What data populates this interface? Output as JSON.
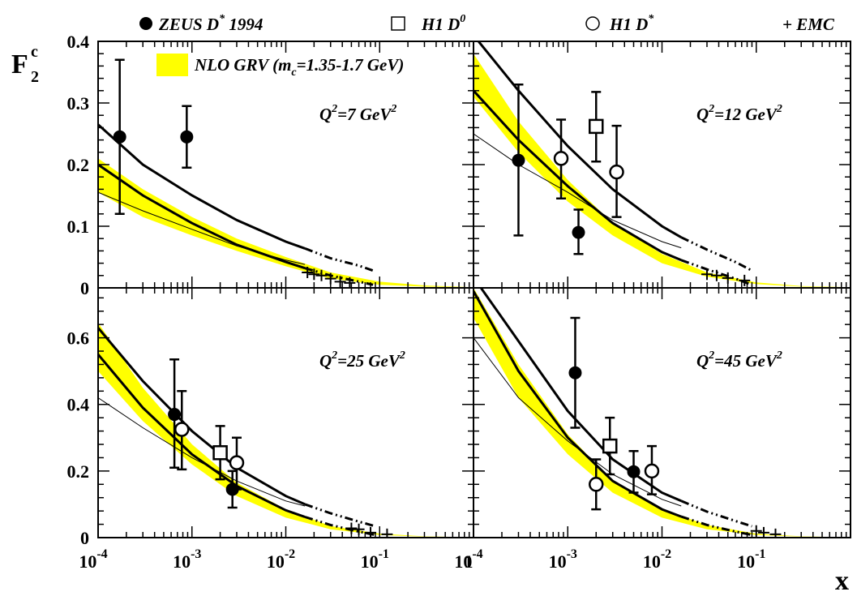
{
  "legend_top": {
    "zeus": "ZEUS D",
    "zeus_sup": "*",
    "zeus_year": " 1994",
    "h1d0": "H1 D",
    "h1d0_sup": "0",
    "h1ds": "H1 D",
    "h1ds_sup": "*",
    "emc": "+ EMC"
  },
  "band_legend": {
    "text_pre": "NLO GRV (m",
    "text_sub": "c",
    "text_post": "=1.35-1.7 GeV)"
  },
  "y_title": {
    "main": "F",
    "sup": "c",
    "sub": "2"
  },
  "x_title": "x",
  "x_ticks": [
    {
      "base": "10",
      "exp": "-4"
    },
    {
      "base": "10",
      "exp": "-3"
    },
    {
      "base": "10",
      "exp": "-2"
    },
    {
      "base": "10",
      "exp": "-1"
    },
    {
      "base": "1",
      "exp": ""
    }
  ],
  "x_ticks_right": [
    {
      "base": "10",
      "exp": "-4"
    },
    {
      "base": "10",
      "exp": "-3"
    },
    {
      "base": "10",
      "exp": "-2"
    },
    {
      "base": "10",
      "exp": "-1"
    },
    {
      "base": "",
      "exp": ""
    }
  ],
  "y_ticks_top": [
    "0",
    "0.1",
    "0.2",
    "0.3",
    "0.4"
  ],
  "y_ticks_bottom": [
    "0",
    "0.2",
    "0.4",
    "0.6"
  ],
  "colors": {
    "band": "#ffff00",
    "ink": "#000000"
  },
  "chart_data": [
    {
      "type": "scatter",
      "panel": "top-left",
      "label_pre": "Q",
      "label_sup": "2",
      "label_mid": "=7 GeV",
      "label_sup2": "2",
      "xlim": [
        0.0001,
        1
      ],
      "ylim": [
        0,
        0.4
      ],
      "xscale": "log",
      "series": [
        {
          "name": "ZEUS D* 1994",
          "points": [
            {
              "x": 0.00017,
              "y": 0.245,
              "lo": 0.12,
              "hi": 0.37
            },
            {
              "x": 0.00088,
              "y": 0.245,
              "lo": 0.195,
              "hi": 0.295
            }
          ]
        },
        {
          "name": "H1 D0",
          "points": []
        },
        {
          "name": "H1 D*",
          "points": []
        },
        {
          "name": "EMC",
          "points": [
            {
              "x": 0.017,
              "y": 0.025
            },
            {
              "x": 0.02,
              "y": 0.022
            },
            {
              "x": 0.024,
              "y": 0.02
            },
            {
              "x": 0.03,
              "y": 0.015
            },
            {
              "x": 0.038,
              "y": 0.01
            },
            {
              "x": 0.048,
              "y": 0.008
            }
          ]
        }
      ],
      "curves": {
        "band_lo": [
          [
            0.0001,
            0.155
          ],
          [
            0.0003,
            0.115
          ],
          [
            0.001,
            0.085
          ],
          [
            0.003,
            0.06
          ],
          [
            0.01,
            0.035
          ],
          [
            0.03,
            0.015
          ],
          [
            0.1,
            0.005
          ],
          [
            0.3,
            0.002
          ],
          [
            1,
            0.001
          ]
        ],
        "band_hi": [
          [
            0.0001,
            0.21
          ],
          [
            0.0003,
            0.16
          ],
          [
            0.001,
            0.115
          ],
          [
            0.003,
            0.08
          ],
          [
            0.01,
            0.05
          ],
          [
            0.03,
            0.025
          ],
          [
            0.1,
            0.01
          ],
          [
            0.3,
            0.004
          ],
          [
            1,
            0.001
          ]
        ],
        "thick_upper": [
          [
            0.0001,
            0.265
          ],
          [
            0.0003,
            0.2
          ],
          [
            0.001,
            0.15
          ],
          [
            0.003,
            0.11
          ],
          [
            0.01,
            0.075
          ],
          [
            0.016,
            0.064
          ]
        ],
        "thick_upper_dash": [
          [
            0.016,
            0.064
          ],
          [
            0.03,
            0.048
          ],
          [
            0.06,
            0.036
          ],
          [
            0.085,
            0.028
          ]
        ],
        "thick_middle": [
          [
            0.0001,
            0.2
          ],
          [
            0.0003,
            0.15
          ],
          [
            0.001,
            0.105
          ],
          [
            0.003,
            0.07
          ],
          [
            0.01,
            0.042
          ],
          [
            0.016,
            0.032
          ]
        ],
        "thick_middle_dash": [
          [
            0.016,
            0.032
          ],
          [
            0.03,
            0.02
          ],
          [
            0.06,
            0.01
          ],
          [
            0.085,
            0.005
          ]
        ],
        "thin": [
          [
            0.0001,
            0.155
          ],
          [
            0.0003,
            0.125
          ],
          [
            0.001,
            0.095
          ],
          [
            0.003,
            0.068
          ],
          [
            0.01,
            0.045
          ],
          [
            0.016,
            0.038
          ]
        ]
      }
    },
    {
      "type": "scatter",
      "panel": "top-right",
      "label_pre": "Q",
      "label_sup": "2",
      "label_mid": "=12 GeV",
      "label_sup2": "2",
      "xlim": [
        0.0001,
        1
      ],
      "ylim": [
        0,
        0.4
      ],
      "xscale": "log",
      "series": [
        {
          "name": "ZEUS D* 1994",
          "points": [
            {
              "x": 0.0003,
              "y": 0.207,
              "lo": 0.085,
              "hi": 0.33
            },
            {
              "x": 0.0013,
              "y": 0.09,
              "lo": 0.055,
              "hi": 0.127
            }
          ]
        },
        {
          "name": "H1 D0",
          "points": [
            {
              "x": 0.002,
              "y": 0.262,
              "lo": 0.205,
              "hi": 0.318
            }
          ]
        },
        {
          "name": "H1 D*",
          "points": [
            {
              "x": 0.00085,
              "y": 0.21,
              "lo": 0.145,
              "hi": 0.273
            },
            {
              "x": 0.0033,
              "y": 0.188,
              "lo": 0.115,
              "hi": 0.263
            }
          ]
        },
        {
          "name": "EMC",
          "points": [
            {
              "x": 0.03,
              "y": 0.022
            },
            {
              "x": 0.038,
              "y": 0.02
            },
            {
              "x": 0.05,
              "y": 0.016
            },
            {
              "x": 0.075,
              "y": 0.012
            }
          ]
        }
      ],
      "curves": {
        "band_lo": [
          [
            0.0001,
            0.31
          ],
          [
            0.0003,
            0.22
          ],
          [
            0.001,
            0.14
          ],
          [
            0.003,
            0.085
          ],
          [
            0.01,
            0.04
          ],
          [
            0.03,
            0.018
          ],
          [
            0.1,
            0.006
          ],
          [
            0.3,
            0.002
          ],
          [
            1,
            0.001
          ]
        ],
        "band_hi": [
          [
            0.0001,
            0.38
          ],
          [
            0.0003,
            0.27
          ],
          [
            0.001,
            0.175
          ],
          [
            0.003,
            0.105
          ],
          [
            0.01,
            0.055
          ],
          [
            0.03,
            0.025
          ],
          [
            0.1,
            0.009
          ],
          [
            0.3,
            0.003
          ],
          [
            1,
            0.001
          ]
        ],
        "thick_upper": [
          [
            0.0001,
            0.41
          ],
          [
            0.0003,
            0.32
          ],
          [
            0.001,
            0.23
          ],
          [
            0.003,
            0.16
          ],
          [
            0.01,
            0.1
          ],
          [
            0.016,
            0.082
          ]
        ],
        "thick_upper_dash": [
          [
            0.016,
            0.082
          ],
          [
            0.03,
            0.062
          ],
          [
            0.06,
            0.042
          ],
          [
            0.09,
            0.028
          ]
        ],
        "thick_middle": [
          [
            0.0001,
            0.32
          ],
          [
            0.0003,
            0.24
          ],
          [
            0.001,
            0.165
          ],
          [
            0.003,
            0.105
          ],
          [
            0.01,
            0.058
          ],
          [
            0.016,
            0.045
          ]
        ],
        "thick_middle_dash": [
          [
            0.016,
            0.045
          ],
          [
            0.03,
            0.03
          ],
          [
            0.06,
            0.015
          ],
          [
            0.09,
            0.005
          ]
        ],
        "thin": [
          [
            0.0001,
            0.25
          ],
          [
            0.0003,
            0.2
          ],
          [
            0.001,
            0.155
          ],
          [
            0.003,
            0.11
          ],
          [
            0.01,
            0.075
          ],
          [
            0.016,
            0.065
          ]
        ]
      }
    },
    {
      "type": "scatter",
      "panel": "bottom-left",
      "label_pre": "Q",
      "label_sup": "2",
      "label_mid": "=25 GeV",
      "label_sup2": "2",
      "xlim": [
        0.0001,
        1
      ],
      "ylim": [
        0,
        0.75
      ],
      "xscale": "log",
      "series": [
        {
          "name": "ZEUS D* 1994",
          "points": [
            {
              "x": 0.00065,
              "y": 0.37,
              "lo": 0.21,
              "hi": 0.535
            },
            {
              "x": 0.0027,
              "y": 0.145,
              "lo": 0.09,
              "hi": 0.2
            }
          ]
        },
        {
          "name": "H1 D0",
          "points": [
            {
              "x": 0.002,
              "y": 0.255,
              "lo": 0.175,
              "hi": 0.335
            }
          ]
        },
        {
          "name": "H1 D*",
          "points": [
            {
              "x": 0.00078,
              "y": 0.325,
              "lo": 0.205,
              "hi": 0.44
            },
            {
              "x": 0.003,
              "y": 0.225,
              "lo": 0.145,
              "hi": 0.3
            }
          ]
        },
        {
          "name": "EMC",
          "points": [
            {
              "x": 0.05,
              "y": 0.028
            },
            {
              "x": 0.06,
              "y": 0.025
            },
            {
              "x": 0.08,
              "y": 0.015
            },
            {
              "x": 0.12,
              "y": 0.01
            }
          ]
        }
      ],
      "curves": {
        "band_lo": [
          [
            0.0001,
            0.5
          ],
          [
            0.0003,
            0.35
          ],
          [
            0.001,
            0.22
          ],
          [
            0.003,
            0.125
          ],
          [
            0.01,
            0.06
          ],
          [
            0.03,
            0.025
          ],
          [
            0.1,
            0.008
          ],
          [
            0.3,
            0.003
          ],
          [
            1,
            0.001
          ]
        ],
        "band_hi": [
          [
            0.0001,
            0.645
          ],
          [
            0.0003,
            0.45
          ],
          [
            0.001,
            0.28
          ],
          [
            0.003,
            0.165
          ],
          [
            0.01,
            0.085
          ],
          [
            0.03,
            0.035
          ],
          [
            0.1,
            0.012
          ],
          [
            0.3,
            0.004
          ],
          [
            1,
            0.001
          ]
        ],
        "thick_upper": [
          [
            0.0001,
            0.63
          ],
          [
            0.0003,
            0.47
          ],
          [
            0.001,
            0.32
          ],
          [
            0.003,
            0.21
          ],
          [
            0.01,
            0.125
          ],
          [
            0.016,
            0.1
          ]
        ],
        "thick_upper_dash": [
          [
            0.016,
            0.1
          ],
          [
            0.03,
            0.073
          ],
          [
            0.06,
            0.048
          ],
          [
            0.09,
            0.034
          ]
        ],
        "thick_middle": [
          [
            0.0001,
            0.55
          ],
          [
            0.0003,
            0.39
          ],
          [
            0.001,
            0.25
          ],
          [
            0.003,
            0.155
          ],
          [
            0.01,
            0.082
          ],
          [
            0.016,
            0.062
          ]
        ],
        "thick_middle_dash": [
          [
            0.016,
            0.062
          ],
          [
            0.03,
            0.038
          ],
          [
            0.06,
            0.018
          ],
          [
            0.09,
            0.008
          ]
        ],
        "thin": [
          [
            0.0001,
            0.42
          ],
          [
            0.0003,
            0.33
          ],
          [
            0.001,
            0.24
          ],
          [
            0.003,
            0.17
          ],
          [
            0.01,
            0.11
          ],
          [
            0.016,
            0.095
          ]
        ]
      }
    },
    {
      "type": "scatter",
      "panel": "bottom-right",
      "label_pre": "Q",
      "label_sup": "2",
      "label_mid": "=45 GeV",
      "label_sup2": "2",
      "xlim": [
        0.0001,
        1
      ],
      "ylim": [
        0,
        0.75
      ],
      "xscale": "log",
      "series": [
        {
          "name": "ZEUS D* 1994",
          "points": [
            {
              "x": 0.0012,
              "y": 0.495,
              "lo": 0.33,
              "hi": 0.66
            },
            {
              "x": 0.005,
              "y": 0.198,
              "lo": 0.135,
              "hi": 0.26
            }
          ]
        },
        {
          "name": "H1 D0",
          "points": [
            {
              "x": 0.0028,
              "y": 0.275,
              "lo": 0.19,
              "hi": 0.36
            }
          ]
        },
        {
          "name": "H1 D*",
          "points": [
            {
              "x": 0.002,
              "y": 0.16,
              "lo": 0.085,
              "hi": 0.235
            },
            {
              "x": 0.0078,
              "y": 0.2,
              "lo": 0.13,
              "hi": 0.275
            }
          ]
        },
        {
          "name": "EMC",
          "points": [
            {
              "x": 0.1,
              "y": 0.02
            },
            {
              "x": 0.12,
              "y": 0.015
            },
            {
              "x": 0.16,
              "y": 0.01
            }
          ]
        }
      ],
      "curves": {
        "band_lo": [
          [
            0.0001,
            0.66
          ],
          [
            0.0003,
            0.42
          ],
          [
            0.001,
            0.25
          ],
          [
            0.003,
            0.135
          ],
          [
            0.01,
            0.06
          ],
          [
            0.03,
            0.025
          ],
          [
            0.1,
            0.008
          ],
          [
            0.3,
            0.003
          ],
          [
            1,
            0.001
          ]
        ],
        "band_hi": [
          [
            0.0001,
            0.75
          ],
          [
            0.0003,
            0.52
          ],
          [
            0.001,
            0.31
          ],
          [
            0.003,
            0.17
          ],
          [
            0.01,
            0.085
          ],
          [
            0.03,
            0.038
          ],
          [
            0.1,
            0.012
          ],
          [
            0.3,
            0.004
          ],
          [
            1,
            0.001
          ]
        ],
        "thick_upper": [
          [
            0.00012,
            0.75
          ],
          [
            0.0003,
            0.59
          ],
          [
            0.001,
            0.38
          ],
          [
            0.003,
            0.235
          ],
          [
            0.01,
            0.135
          ],
          [
            0.016,
            0.11
          ]
        ],
        "thick_upper_dash": [
          [
            0.016,
            0.11
          ],
          [
            0.03,
            0.078
          ],
          [
            0.06,
            0.05
          ],
          [
            0.09,
            0.034
          ]
        ],
        "thick_middle": [
          [
            0.0001,
            0.74
          ],
          [
            0.0003,
            0.5
          ],
          [
            0.001,
            0.3
          ],
          [
            0.003,
            0.17
          ],
          [
            0.01,
            0.085
          ],
          [
            0.016,
            0.063
          ]
        ],
        "thick_middle_dash": [
          [
            0.016,
            0.063
          ],
          [
            0.03,
            0.038
          ],
          [
            0.06,
            0.018
          ],
          [
            0.09,
            0.008
          ]
        ],
        "thin": [
          [
            0.0001,
            0.6
          ],
          [
            0.0003,
            0.42
          ],
          [
            0.001,
            0.29
          ],
          [
            0.003,
            0.19
          ],
          [
            0.01,
            0.115
          ],
          [
            0.016,
            0.095
          ]
        ]
      }
    }
  ]
}
